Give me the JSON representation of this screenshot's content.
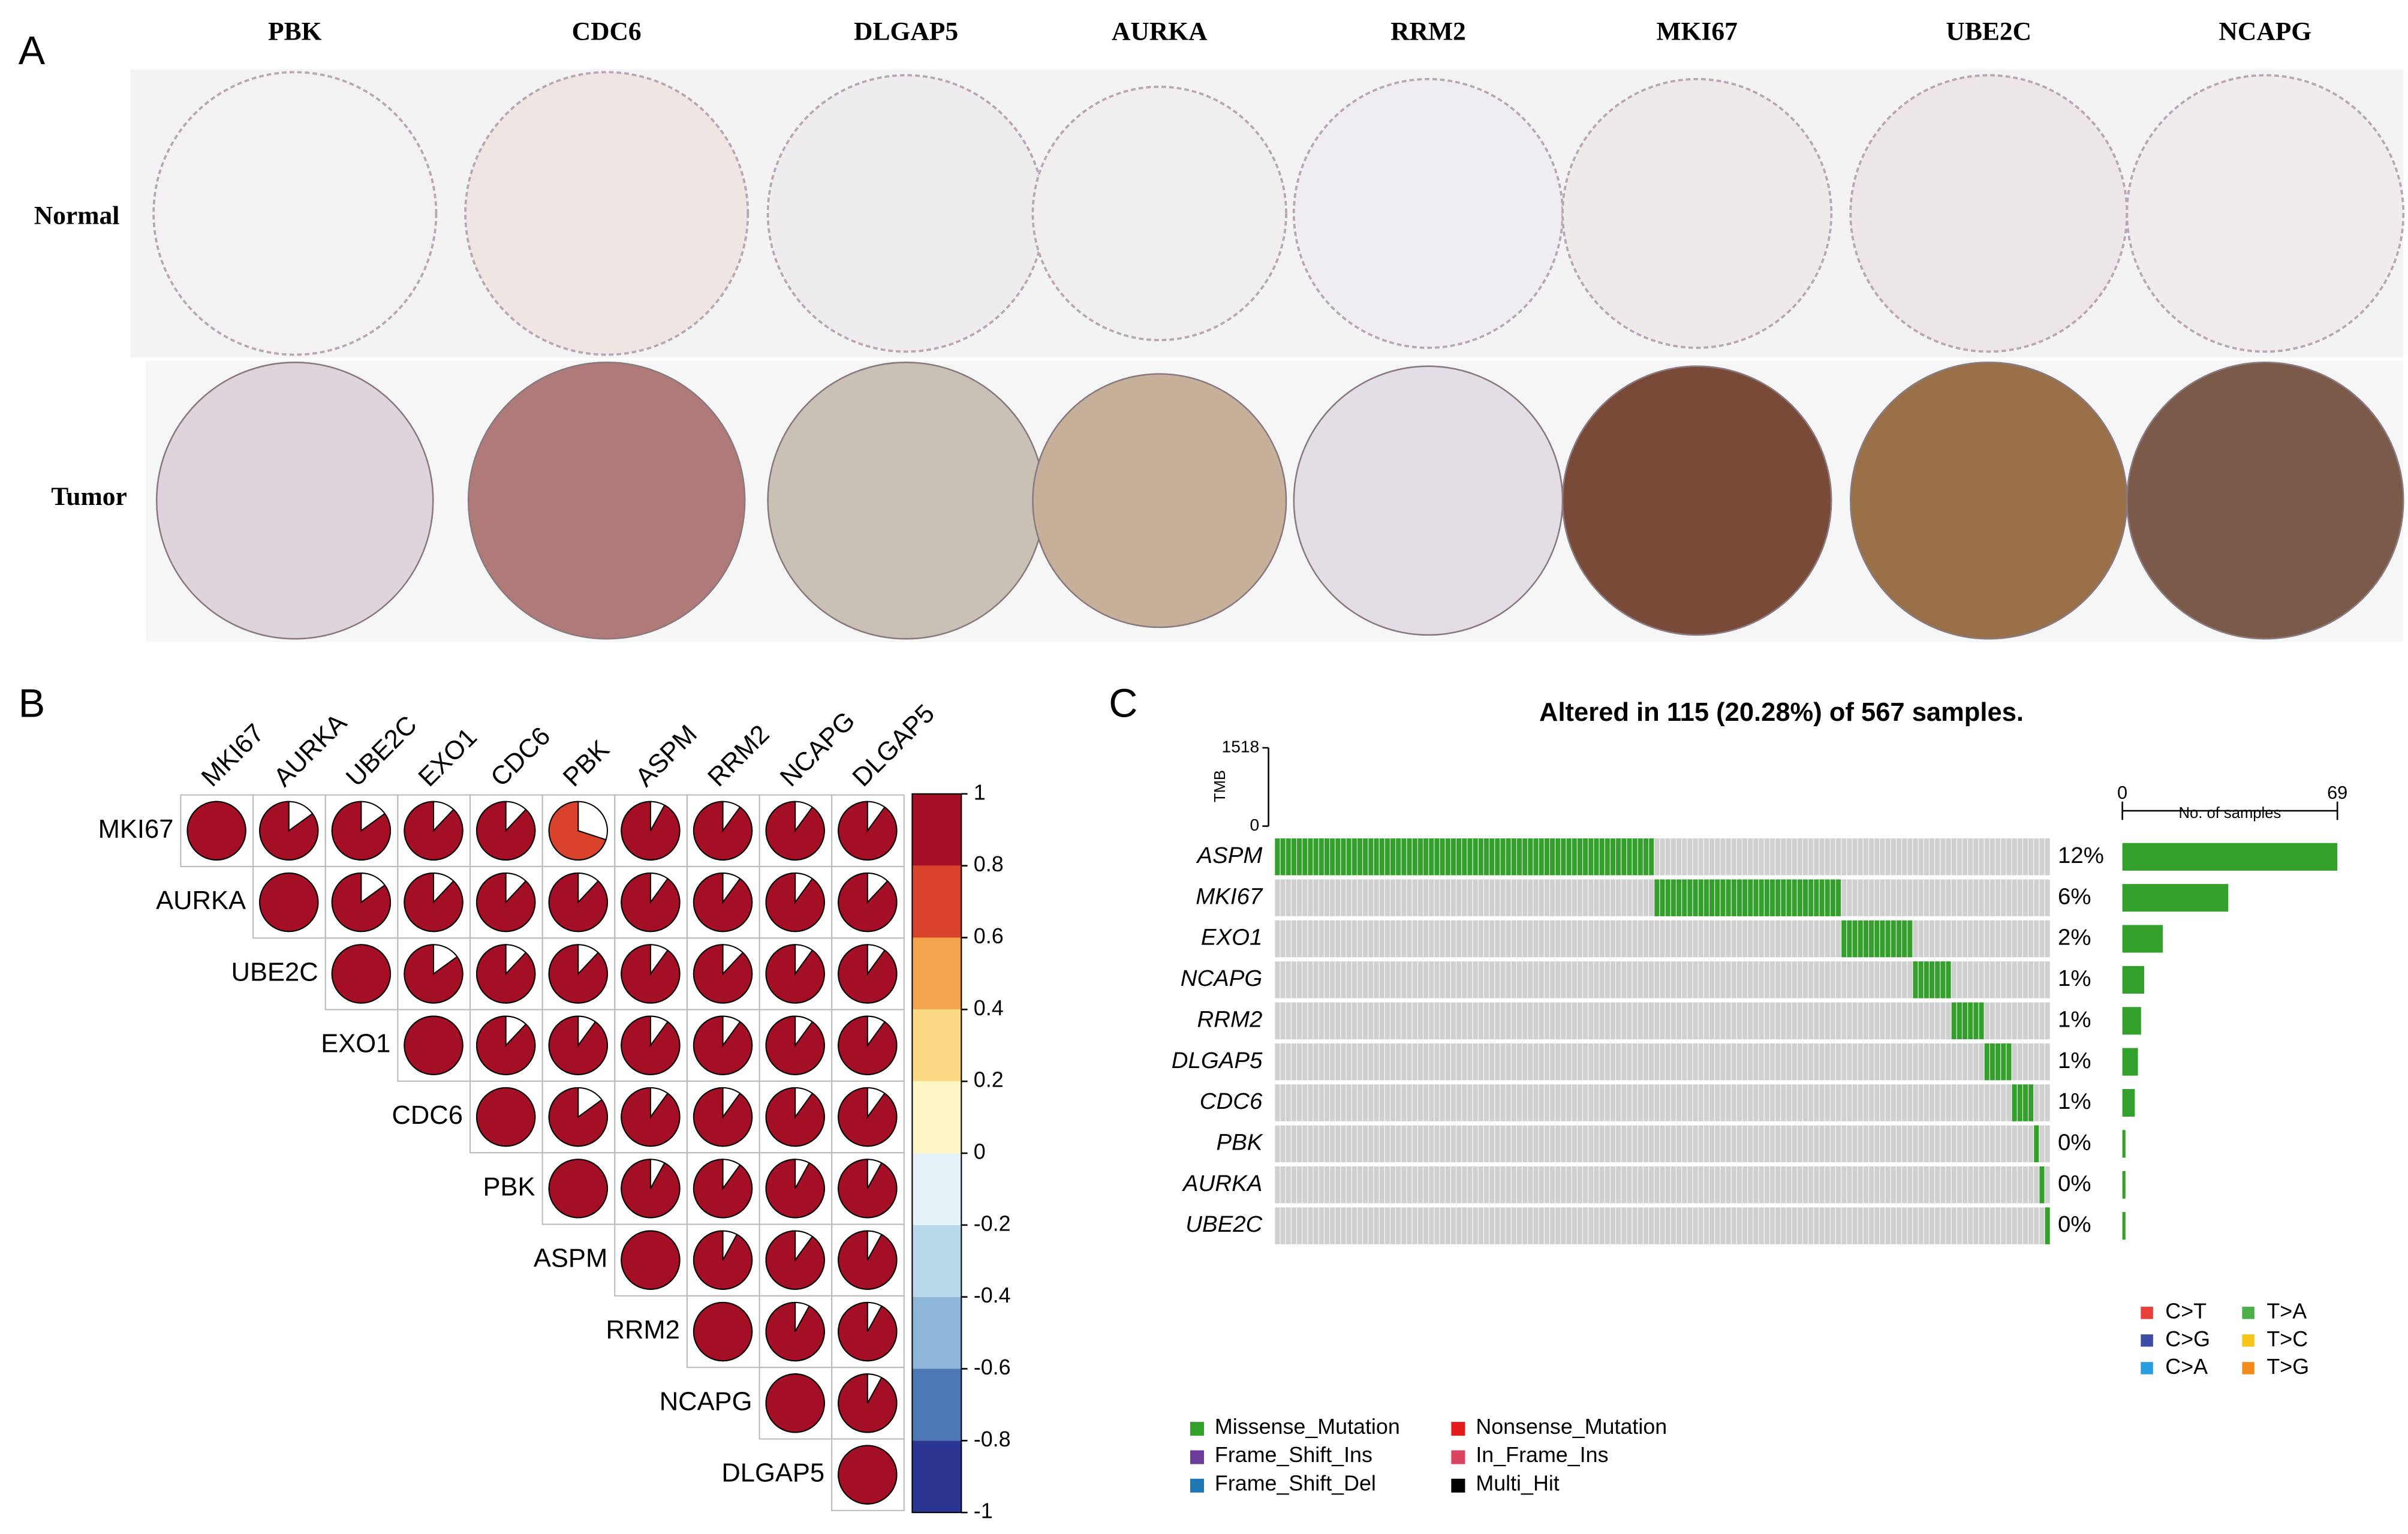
{
  "panel_labels": [
    "A",
    "B",
    "C"
  ],
  "panel_a": {
    "genes": [
      "PBK",
      "CDC6",
      "DLGAP5",
      "AURKA",
      "RRM2",
      "MKI67",
      "UBE2C",
      "NCAPG"
    ],
    "rows": [
      "Normal",
      "Tumor"
    ]
  },
  "panel_b": {
    "type": "correlation-pie",
    "genes": [
      "MKI67",
      "AURKA",
      "UBE2C",
      "EXO1",
      "CDC6",
      "PBK",
      "ASPM",
      "RRM2",
      "NCAPG",
      "DLGAP5"
    ],
    "matrix": [
      [
        1,
        0.85,
        0.85,
        0.88,
        0.88,
        0.7,
        0.92,
        0.9,
        0.9,
        0.9
      ],
      [
        null,
        1,
        0.85,
        0.88,
        0.88,
        0.88,
        0.9,
        0.9,
        0.9,
        0.88
      ],
      [
        null,
        null,
        1,
        0.85,
        0.88,
        0.88,
        0.9,
        0.88,
        0.9,
        0.9
      ],
      [
        null,
        null,
        null,
        1,
        0.88,
        0.9,
        0.9,
        0.9,
        0.9,
        0.9
      ],
      [
        null,
        null,
        null,
        null,
        1,
        0.85,
        0.9,
        0.9,
        0.9,
        0.9
      ],
      [
        null,
        null,
        null,
        null,
        null,
        1,
        0.92,
        0.9,
        0.92,
        0.92
      ],
      [
        null,
        null,
        null,
        null,
        null,
        null,
        1,
        0.92,
        0.9,
        0.92
      ],
      [
        null,
        null,
        null,
        null,
        null,
        null,
        null,
        1,
        0.92,
        0.92
      ],
      [
        null,
        null,
        null,
        null,
        null,
        null,
        null,
        null,
        1,
        0.92
      ],
      [
        null,
        null,
        null,
        null,
        null,
        null,
        null,
        null,
        null,
        1
      ]
    ],
    "colorbar": {
      "lim": [
        -1,
        1
      ],
      "ticks": [
        1,
        0.8,
        0.6,
        0.4,
        0.2,
        0,
        -0.2,
        -0.4,
        -0.6,
        -0.8,
        -1
      ],
      "colors": [
        "#a50f25",
        "#d9432c",
        "#f4a44c",
        "#fdd985",
        "#fdf6c6",
        "#e6f2f7",
        "#b9d9ea",
        "#8db6d8",
        "#4d78b3",
        "#2b3592"
      ]
    }
  },
  "panel_c": {
    "type": "oncoplot",
    "title": "Altered in 115 (20.28%) of 567 samples.",
    "tmb_label": "TMB",
    "tmb_lim": [
      0,
      1518
    ],
    "tmb_ticks": [
      0,
      1518
    ],
    "genes": [
      "ASPM",
      "MKI67",
      "EXO1",
      "NCAPG",
      "RRM2",
      "DLGAP5",
      "CDC6",
      "PBK",
      "AURKA",
      "UBE2C"
    ],
    "altered_percent": [
      "12%",
      "6%",
      "2%",
      "1%",
      "1%",
      "1%",
      "1%",
      "0%",
      "0%",
      "0%"
    ],
    "samples": [
      69,
      34,
      13,
      7,
      6,
      5,
      4,
      1,
      1,
      1
    ],
    "samples_label": "No. of samples",
    "samples_lim": [
      0,
      69
    ],
    "samples_ticks": [
      0,
      69
    ],
    "bar_color": "#33a02c",
    "variant_legend": [
      {
        "name": "Missense_Mutation",
        "color": "#33a02c"
      },
      {
        "name": "Nonsense_Mutation",
        "color": "#e31a1c"
      },
      {
        "name": "Frame_Shift_Ins",
        "color": "#6a3d9a"
      },
      {
        "name": "In_Frame_Ins",
        "color": "#d9435b"
      },
      {
        "name": "Frame_Shift_Del",
        "color": "#1f78b4"
      },
      {
        "name": "Multi_Hit",
        "color": "#000000"
      }
    ],
    "transition_legend": [
      {
        "name": "C>T",
        "color": "#e8413a"
      },
      {
        "name": "T>A",
        "color": "#4cb04a"
      },
      {
        "name": "C>G",
        "color": "#3b4ea3"
      },
      {
        "name": "T>C",
        "color": "#f5c518"
      },
      {
        "name": "C>A",
        "color": "#2a9ce0"
      },
      {
        "name": "T>G",
        "color": "#f28a1c"
      }
    ]
  }
}
